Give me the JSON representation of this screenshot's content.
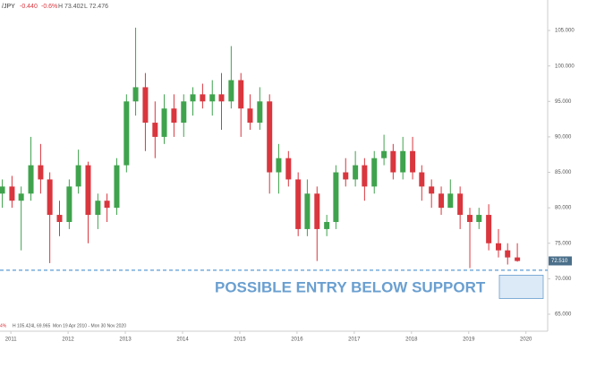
{
  "chart_data": {
    "type": "candlestick",
    "symbol": "/JPY",
    "change": "-0.440",
    "change_pct": "-0.6%",
    "high_label": "H 73.402",
    "low_label": "L 72.476",
    "footer": {
      "pct": "4%",
      "high": "H 105.424",
      "low": "L 69.965",
      "range": "Mon 19 Apr 2010 - Mon 30 Nov 2020"
    },
    "annotation": "POSSIBLE ENTRY BELOW SUPPORT",
    "support": 71.2,
    "entry_zone": [
      67.2,
      70.5
    ],
    "last_price": {
      "value": 72.51,
      "label": "72.510"
    },
    "up_color": "#3fa34d",
    "down_color": "#d9363e",
    "xlim": [
      2010.81,
      2020.38
    ],
    "ylim": [
      62.6,
      109.3
    ],
    "xticks": [
      2011,
      2012,
      2013,
      2014,
      2015,
      2016,
      2017,
      2018,
      2019,
      2020
    ],
    "yticks": [
      {
        "value": 65,
        "label": "65.000"
      },
      {
        "value": 70,
        "label": "70.000"
      },
      {
        "value": 75,
        "label": "75.000"
      },
      {
        "value": 80,
        "label": "80.000"
      },
      {
        "value": 85,
        "label": "85.000"
      },
      {
        "value": 90,
        "label": "90.000"
      },
      {
        "value": 95,
        "label": "95.000"
      },
      {
        "value": 100,
        "label": "100.000"
      },
      {
        "value": 105,
        "label": "105.000"
      }
    ],
    "candles": {
      "x": [
        2010.85,
        2011.02,
        2011.18,
        2011.35,
        2011.52,
        2011.68,
        2011.85,
        2012.02,
        2012.18,
        2012.35,
        2012.52,
        2012.68,
        2012.85,
        2013.02,
        2013.18,
        2013.35,
        2013.52,
        2013.68,
        2013.85,
        2014.02,
        2014.18,
        2014.35,
        2014.52,
        2014.68,
        2014.85,
        2015.02,
        2015.18,
        2015.35,
        2015.52,
        2015.68,
        2015.85,
        2016.02,
        2016.18,
        2016.35,
        2016.52,
        2016.68,
        2016.85,
        2017.02,
        2017.18,
        2017.35,
        2017.52,
        2017.68,
        2017.85,
        2018.02,
        2018.18,
        2018.35,
        2018.52,
        2018.68,
        2018.85,
        2019.02,
        2019.18,
        2019.35,
        2019.52,
        2019.68,
        2019.85
      ],
      "open": [
        82,
        83,
        81,
        82,
        86,
        84,
        79,
        78,
        83,
        86,
        79,
        81,
        80,
        86,
        95,
        97,
        92,
        90,
        94,
        92,
        95,
        96,
        95,
        96,
        95,
        98,
        94,
        92,
        95,
        85,
        87,
        84,
        77,
        82,
        77,
        78,
        85,
        84,
        86,
        83,
        87,
        88,
        85,
        88,
        85,
        83,
        82,
        80,
        82,
        79,
        78,
        79,
        75,
        74,
        73
      ],
      "high": [
        84,
        84.5,
        83,
        90,
        89,
        85,
        81,
        84,
        88.2,
        86.5,
        82,
        82,
        87,
        96,
        105.4,
        99,
        95,
        96,
        96,
        96,
        97,
        97.5,
        98,
        99,
        102.8,
        99,
        96,
        97,
        96,
        89,
        88,
        85,
        84,
        83,
        79,
        86,
        87,
        88,
        87,
        88,
        90.3,
        89,
        90,
        90,
        86,
        84,
        83,
        84,
        83,
        80,
        80,
        80.5,
        77,
        75,
        75
      ],
      "low": [
        80,
        80,
        74,
        81,
        82,
        72.2,
        76,
        77,
        82,
        75,
        77,
        78,
        79,
        85,
        93,
        88,
        87,
        89,
        90,
        90,
        93,
        94,
        93,
        91,
        94,
        90,
        91,
        91,
        82,
        82,
        83,
        76,
        76,
        72.5,
        76,
        77,
        83,
        83,
        81,
        82,
        86,
        84,
        84,
        84,
        81,
        80,
        79,
        80,
        77,
        71.5,
        77,
        74,
        73,
        72,
        72.4
      ],
      "close": [
        83,
        81,
        82,
        86,
        84,
        79,
        78,
        83,
        86,
        79,
        81,
        80,
        86,
        95,
        97,
        92,
        90,
        94,
        92,
        95,
        96,
        95,
        96,
        95,
        98,
        94,
        92,
        95,
        85,
        87,
        84,
        77,
        82,
        77,
        78,
        85,
        84,
        86,
        83,
        87,
        88,
        85,
        88,
        85,
        83,
        82,
        80,
        82,
        79,
        78,
        79,
        75,
        74,
        73,
        72.5
      ]
    }
  }
}
